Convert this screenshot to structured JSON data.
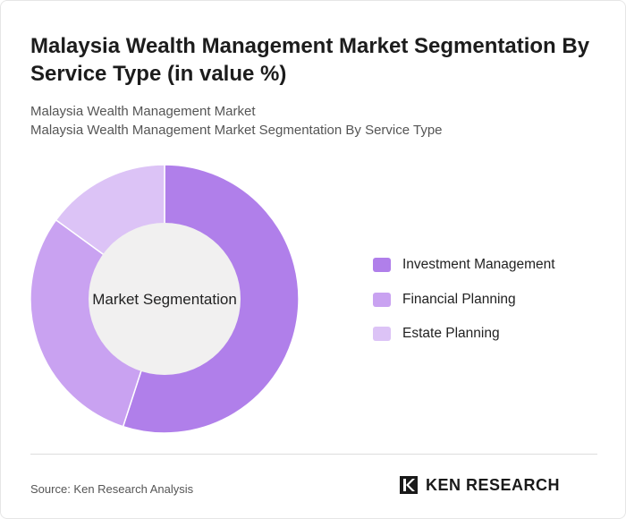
{
  "header": {
    "title": "Malaysia Wealth Management Market Segmentation By Service Type (in value %)",
    "subtitle_1": "Malaysia Wealth Management Market",
    "subtitle_2": "Malaysia Wealth Management Market Segmentation By Service Type"
  },
  "chart_data": {
    "type": "pie",
    "center_label": "Market Segmentation",
    "categories": [
      "Investment Management",
      "Financial Planning",
      "Estate Planning"
    ],
    "values": [
      55,
      30,
      15
    ],
    "colors": [
      "#b07fea",
      "#c9a2f1",
      "#dcc3f6"
    ],
    "legend": "right"
  },
  "footer": {
    "source": "Source: Ken Research Analysis",
    "logo_text": "KEN RESEARCH"
  }
}
